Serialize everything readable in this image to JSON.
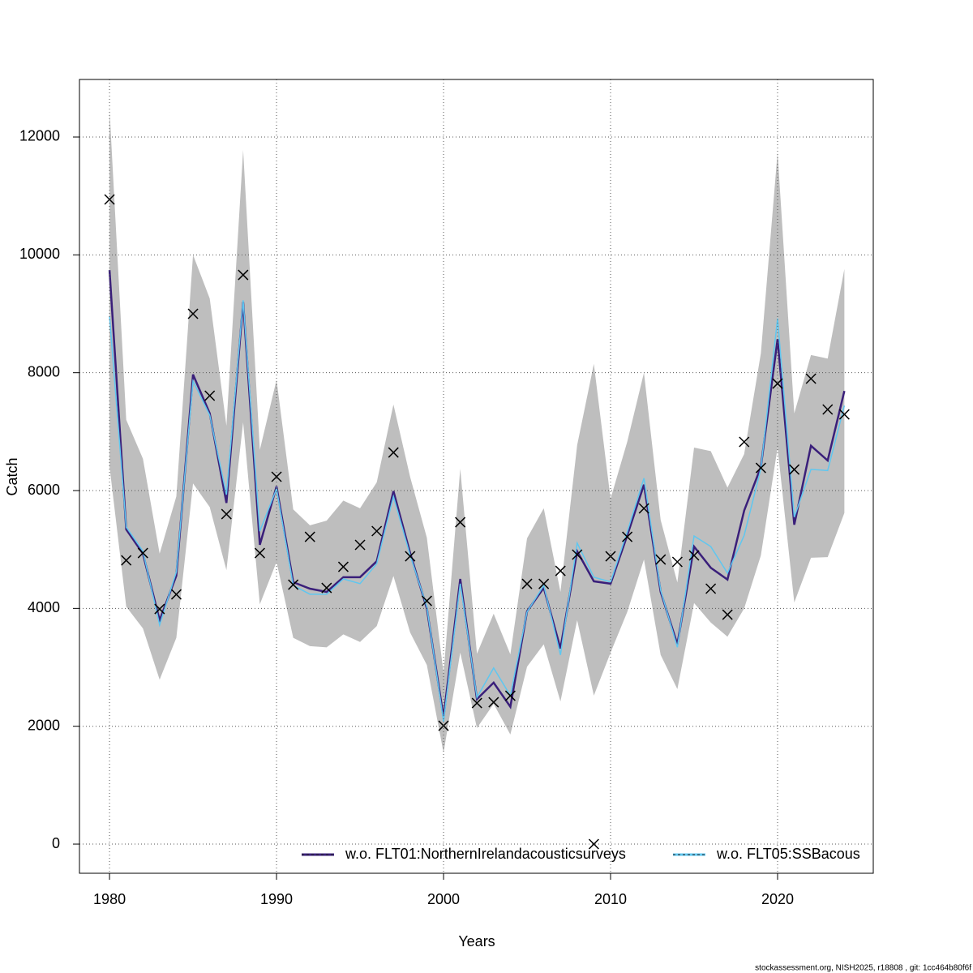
{
  "chart_data": {
    "type": "line",
    "x_label": "Years",
    "y_label": "Catch",
    "footer": "stockassessment.org, NISH2025, r18808 , git: 1cc464b80f6f",
    "x": [
      1980,
      1981,
      1982,
      1983,
      1984,
      1985,
      1986,
      1987,
      1988,
      1989,
      1990,
      1991,
      1992,
      1993,
      1994,
      1995,
      1996,
      1997,
      1998,
      1999,
      2000,
      2001,
      2002,
      2003,
      2004,
      2005,
      2006,
      2007,
      2008,
      2009,
      2010,
      2011,
      2012,
      2013,
      2014,
      2015,
      2016,
      2017,
      2018,
      2019,
      2020,
      2021,
      2022,
      2023,
      2024
    ],
    "band": {
      "color": "#bebebe",
      "upper": [
        12470,
        7200,
        6540,
        4930,
        5900,
        10000,
        9260,
        7100,
        11780,
        6690,
        7880,
        5680,
        5410,
        5490,
        5830,
        5700,
        6140,
        7460,
        6230,
        5200,
        2900,
        6370,
        3230,
        3910,
        3220,
        5190,
        5700,
        4280,
        6770,
        8150,
        5860,
        6830,
        8000,
        5500,
        4440,
        6730,
        6670,
        6050,
        6620,
        8330,
        11740,
        7310,
        8300,
        8240,
        9760
      ],
      "lower": [
        6410,
        4030,
        3660,
        2790,
        3500,
        6120,
        5720,
        4650,
        7160,
        4070,
        4790,
        3500,
        3360,
        3340,
        3560,
        3430,
        3700,
        4550,
        3590,
        3040,
        1550,
        3250,
        1970,
        2380,
        1860,
        3010,
        3390,
        2420,
        3800,
        2520,
        3250,
        3940,
        4830,
        3210,
        2630,
        4090,
        3760,
        3520,
        4000,
        4900,
        6730,
        4100,
        4860,
        4870,
        5620
      ]
    },
    "series": [
      {
        "name": "w.o. FLT01:NorthernIrelandacousticsurveys",
        "color": "#3a1f7a",
        "values": [
          9740,
          5340,
          4930,
          3800,
          4555,
          7970,
          7310,
          5790,
          9200,
          5080,
          6070,
          4445,
          4335,
          4280,
          4530,
          4530,
          4800,
          5990,
          4940,
          4000,
          2150,
          4500,
          2460,
          2740,
          2330,
          3950,
          4350,
          3320,
          4970,
          4460,
          4420,
          5240,
          6100,
          4280,
          3390,
          5050,
          4690,
          4490,
          5660,
          6400,
          8570,
          5420,
          6760,
          6510,
          7690
        ]
      },
      {
        "name": "w.o. FLT05:SSBacous",
        "color": "#5fc7f0",
        "values": [
          8960,
          5380,
          4970,
          3720,
          4620,
          7860,
          7280,
          5930,
          9230,
          5310,
          6030,
          4390,
          4240,
          4240,
          4500,
          4420,
          4760,
          5900,
          4900,
          4030,
          2080,
          4420,
          2490,
          2990,
          2520,
          3940,
          4390,
          3210,
          5110,
          4530,
          4450,
          5300,
          6210,
          4310,
          3340,
          5230,
          5050,
          4600,
          5240,
          6370,
          8920,
          5550,
          6360,
          6340,
          7440
        ]
      }
    ],
    "observed": {
      "color": "#000000",
      "values": [
        10940,
        4816,
        4940,
        3990,
        4238,
        9000,
        7610,
        5600,
        9660,
        4940,
        6234,
        4403,
        5215,
        4348,
        4706,
        5078,
        5312,
        6646,
        4885,
        4128,
        2009,
        5463,
        2394,
        2408,
        2518,
        4417,
        4417,
        4637,
        4913,
        0,
        4885,
        5215,
        5697,
        4830,
        4789,
        4899,
        4335,
        3894,
        6826,
        6385,
        7816,
        6357,
        7899,
        7376,
        7293
      ]
    },
    "xlim": [
      1978.2,
      2025.73
    ],
    "ylim": [
      -495,
      12977
    ],
    "xticks": [
      1980,
      1990,
      2000,
      2010,
      2020
    ],
    "yticks": [
      0,
      2000,
      4000,
      6000,
      8000,
      10000,
      12000
    ],
    "grid": true
  }
}
